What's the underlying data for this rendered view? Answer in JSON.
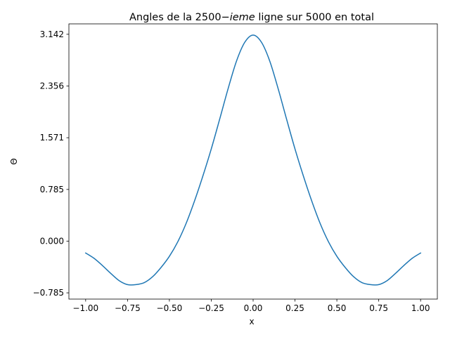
{
  "chart_data": {
    "type": "line",
    "title": {
      "prefix": "Angles de la ",
      "number": "2500",
      "operator": "−",
      "italic": "ieme",
      "suffix": " ligne sur 5000 en total"
    },
    "xlabel": "x",
    "ylabel": "Θ",
    "xlim": [
      -1.1,
      1.1
    ],
    "ylim": [
      -0.88,
      3.3
    ],
    "xticks": [
      -1.0,
      -0.75,
      -0.5,
      -0.25,
      0.0,
      0.25,
      0.5,
      0.75,
      1.0
    ],
    "xtick_labels": [
      "−1.00",
      "−0.75",
      "−0.50",
      "−0.25",
      "0.00",
      "0.25",
      "0.50",
      "0.75",
      "1.00"
    ],
    "yticks": [
      -0.785,
      0.0,
      0.785,
      1.571,
      2.356,
      3.142
    ],
    "ytick_labels": [
      "−0.785",
      "0.000",
      "0.785",
      "1.571",
      "2.356",
      "3.142"
    ],
    "grid": false,
    "series": [
      {
        "color": "#1f77b4",
        "x": [
          -1.0,
          -0.95,
          -0.9,
          -0.85,
          -0.8,
          -0.75,
          -0.7,
          -0.65,
          -0.6,
          -0.55,
          -0.5,
          -0.45,
          -0.4,
          -0.35,
          -0.3,
          -0.25,
          -0.2,
          -0.15,
          -0.1,
          -0.05,
          0.0,
          0.05,
          0.1,
          0.15,
          0.2,
          0.25,
          0.3,
          0.35,
          0.4,
          0.45,
          0.5,
          0.55,
          0.6,
          0.65,
          0.7,
          0.75,
          0.8,
          0.85,
          0.9,
          0.95,
          1.0
        ],
        "y": [
          -0.18,
          -0.26,
          -0.37,
          -0.49,
          -0.6,
          -0.66,
          -0.66,
          -0.63,
          -0.54,
          -0.4,
          -0.23,
          -0.01,
          0.27,
          0.61,
          0.99,
          1.4,
          1.85,
          2.31,
          2.73,
          3.02,
          3.13,
          3.02,
          2.73,
          2.31,
          1.85,
          1.4,
          0.99,
          0.61,
          0.27,
          -0.01,
          -0.23,
          -0.4,
          -0.54,
          -0.63,
          -0.66,
          -0.66,
          -0.6,
          -0.49,
          -0.37,
          -0.26,
          -0.18
        ]
      }
    ]
  }
}
